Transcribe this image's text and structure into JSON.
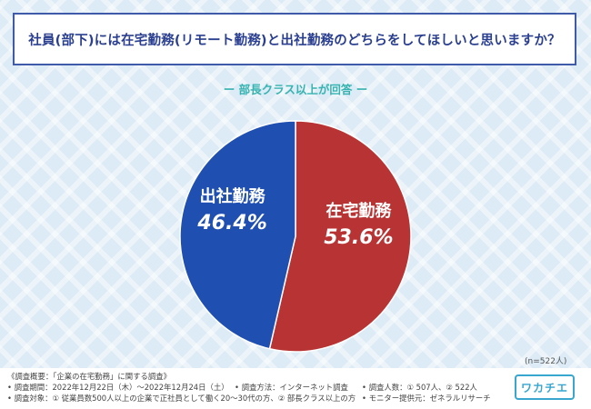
{
  "title": "社員(部下)には在宅勤務(リモート勤務)と出社勤務のどちらをしてほしいと思いますか？",
  "subtitle": "ー 部長クラス以上が回答 ー",
  "chart_data": {
    "type": "pie",
    "slices": [
      {
        "label": "在宅勤務",
        "value": 53.6,
        "display": "53.6%",
        "color": "#b83434"
      },
      {
        "label": "出社勤務",
        "value": 46.4,
        "display": "46.4%",
        "color": "#1f4fb0"
      }
    ],
    "note": "(n=522人)"
  },
  "footer": {
    "line1": "《調査概要：「企業の在宅勤務」に関する調査》",
    "period": "• 調査期間：2022年12月22日（木）〜2022年12月24日（土）",
    "method": "• 調査方法：インターネット調査",
    "count": "• 調査人数：① 507人、② 522人",
    "target": "• 調査対象：① 従業員数500人以上の企業で正社員として働く20〜30代の方、② 部長クラス以上の方",
    "provider": "• モニター提供元：ゼネラルリサーチ"
  },
  "logo": "ワカチエ"
}
